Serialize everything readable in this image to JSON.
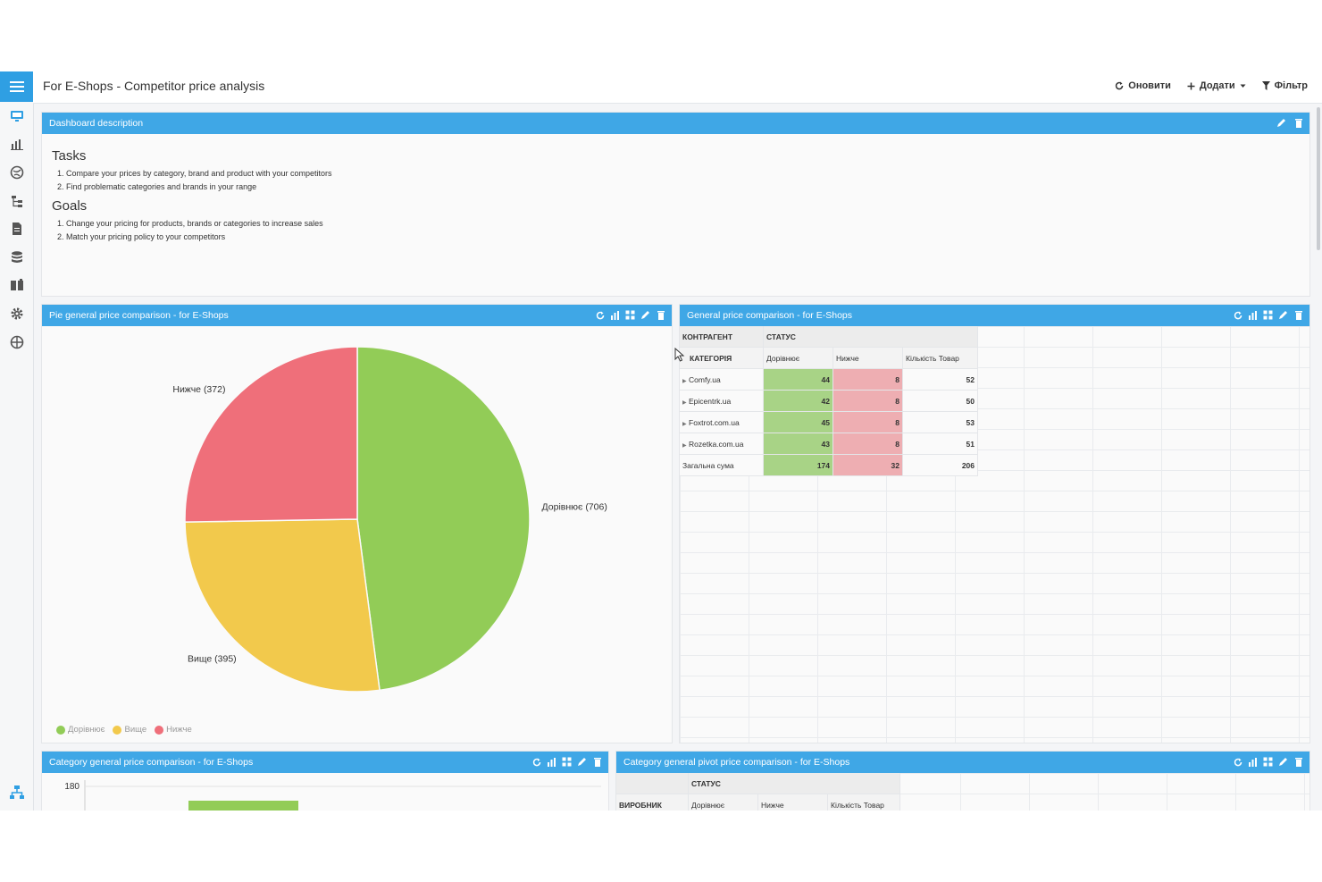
{
  "app": {
    "title": "For E-Shops - Competitor price analysis",
    "actions": {
      "refresh": "Оновити",
      "add": "Додати",
      "filter": "Фільтр"
    }
  },
  "sidebar": {
    "icons": [
      "monitor-icon",
      "chart-icon",
      "globe-icon",
      "hierarchy-icon",
      "document-icon",
      "database-icon",
      "book-icon",
      "gear-icon",
      "network-icon"
    ],
    "bottom_icon": "org-chart-icon"
  },
  "description": {
    "header": "Dashboard description",
    "tasks_title": "Tasks",
    "tasks": [
      "Compare your prices by category, brand and product with your competitors",
      "Find problematic categories and brands in your range"
    ],
    "goals_title": "Goals",
    "goals": [
      "Change your pricing for products, brands or categories to increase sales",
      "Match your pricing policy to your competitors"
    ]
  },
  "pie_panel": {
    "header": "Pie general price comparison - for E-Shops"
  },
  "table_panel": {
    "header": "General price comparison - for E-Shops",
    "col_contractor": "КОНТРАГЕНТ",
    "col_status": "СТАТУС",
    "col_category": "КАТЕГОРІЯ",
    "sub_headers": [
      "Дорівнює",
      "Нижче",
      "Кількість Товар"
    ],
    "rows": [
      {
        "name": "Comfy.ua",
        "equal": "44",
        "lower": "8",
        "count": "52"
      },
      {
        "name": "Epicentrk.ua",
        "equal": "42",
        "lower": "8",
        "count": "50"
      },
      {
        "name": "Foxtrot.com.ua",
        "equal": "45",
        "lower": "8",
        "count": "53"
      },
      {
        "name": "Rozetka.com.ua",
        "equal": "43",
        "lower": "8",
        "count": "51"
      }
    ],
    "total": {
      "name": "Загальна сума",
      "equal": "174",
      "lower": "32",
      "count": "206"
    }
  },
  "bar_panel": {
    "header": "Category general price comparison - for E-Shops",
    "ytick": "180"
  },
  "pivot2_panel": {
    "header": "Category general pivot price comparison - for E-Shops",
    "col_status": "СТАТУС",
    "col_maker": "ВИРОБНИК",
    "sub_headers": [
      "Дорівнює",
      "Нижче",
      "Кількість Товар"
    ]
  },
  "chart_data": {
    "type": "pie",
    "slices": [
      {
        "label": "Дорівнює (706)",
        "name": "Дорівнює",
        "value": 706,
        "color": "#92cc57"
      },
      {
        "label": "Вище (395)",
        "name": "Вище",
        "value": 395,
        "color": "#f2c94c"
      },
      {
        "label": "Нижче (372)",
        "name": "Нижче",
        "value": 372,
        "color": "#ef6f7a"
      }
    ],
    "legend": [
      "Дорівнює",
      "Вище",
      "Нижче"
    ],
    "legend_position": "bottom-left"
  },
  "colors": {
    "accent": "#3fa7e6",
    "equal": "#92cc57",
    "higher": "#f2c94c",
    "lower": "#ef6f7a"
  }
}
